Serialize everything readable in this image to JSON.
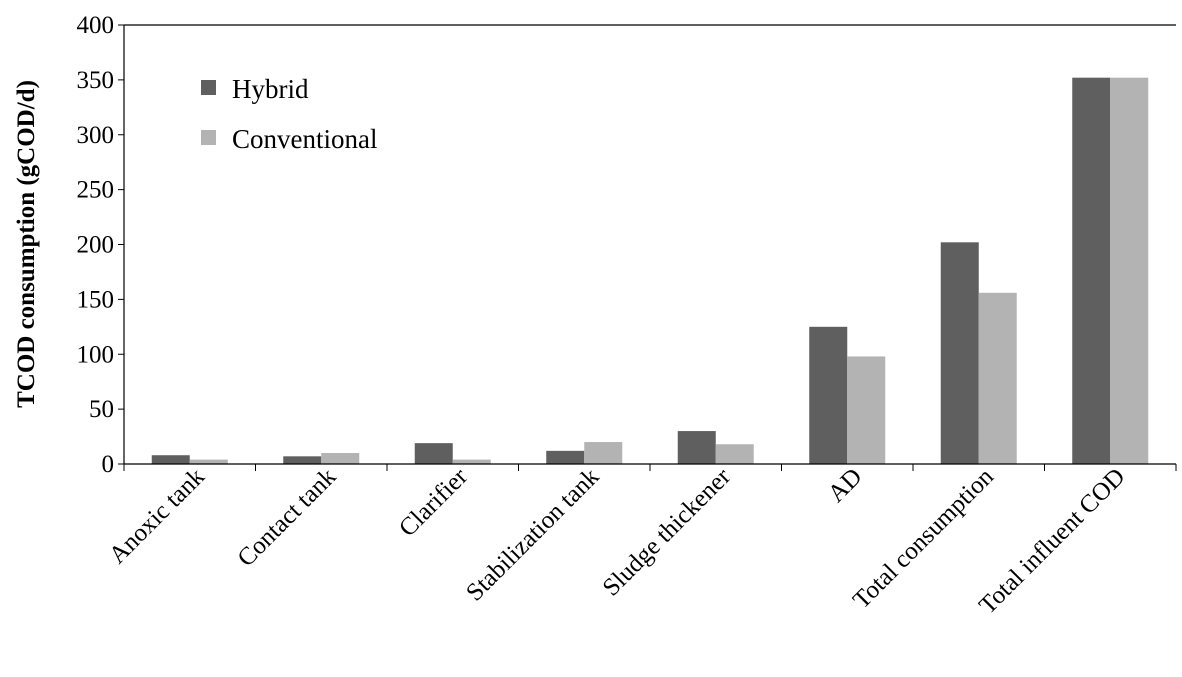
{
  "chart_data": {
    "type": "bar",
    "title": "",
    "xlabel": "",
    "ylabel": "TCOD consumption (gCOD/d)",
    "ylim": [
      0,
      400
    ],
    "yticks": [
      0,
      50,
      100,
      150,
      200,
      250,
      300,
      350,
      400
    ],
    "grid": false,
    "legend_position": "top-left",
    "categories": [
      "Anoxic tank",
      "Contact tank",
      "Clarifier",
      "Stabilization tank",
      "Sludge thickener",
      "AD",
      "Total consumption",
      "Total influent COD"
    ],
    "series": [
      {
        "name": "Hybrid",
        "color": "#5f5f5f",
        "values": [
          8,
          7,
          19,
          12,
          30,
          125,
          202,
          352
        ]
      },
      {
        "name": "Conventional",
        "color": "#b3b3b3",
        "values": [
          4,
          10,
          4,
          20,
          18,
          98,
          156,
          352
        ]
      }
    ]
  }
}
